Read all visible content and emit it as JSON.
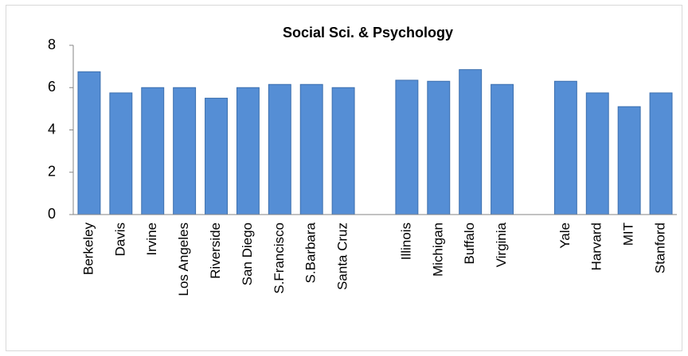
{
  "chart_data": {
    "type": "bar",
    "title": "Social Sci. & Psychology",
    "categories": [
      "Berkeley",
      "Davis",
      "Irvine",
      "Los Angeles",
      "Riverside",
      "San Diego",
      "S.Francisco",
      "S.Barbara",
      "Santa Cruz",
      null,
      "Illinois",
      "Michigan",
      "Buffalo",
      "Virginia",
      null,
      "Yale",
      "Harvard",
      "MIT",
      "Stanford"
    ],
    "values": [
      6.75,
      5.75,
      6,
      6,
      5.5,
      6,
      6.15,
      6.15,
      6,
      null,
      6.35,
      6.3,
      6.85,
      6.15,
      null,
      6.3,
      5.75,
      5.1,
      5.75
    ],
    "color": "#558ed5",
    "ylim": [
      0,
      8
    ],
    "yticks": [
      0,
      2,
      4,
      6,
      8
    ],
    "grid": false
  }
}
